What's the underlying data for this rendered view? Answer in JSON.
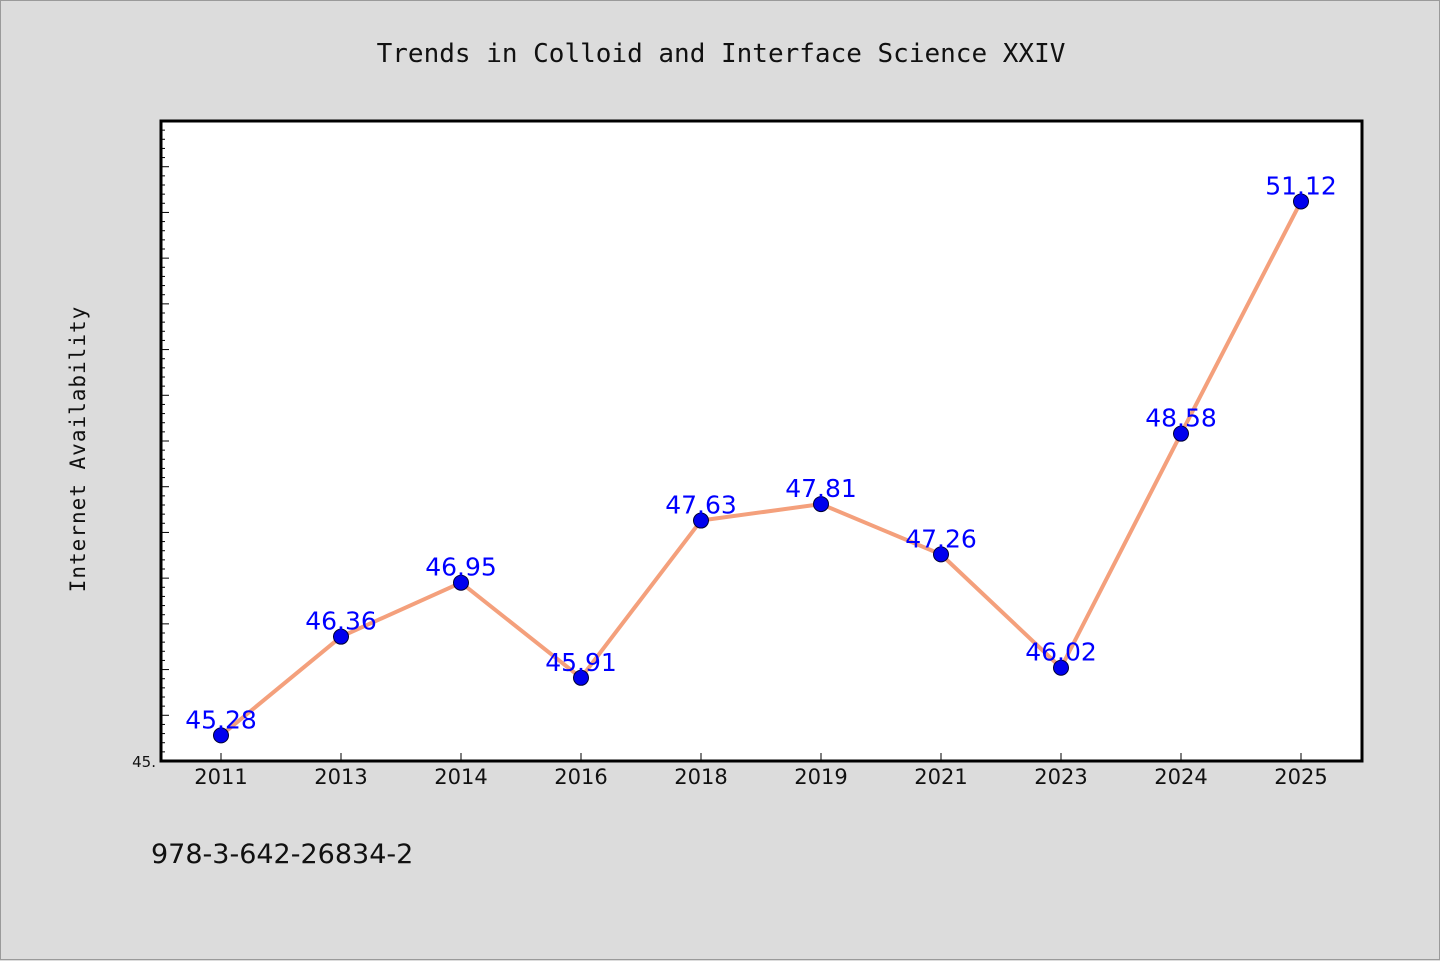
{
  "chart_data": {
    "type": "line",
    "title": "Trends in Colloid and Interface Science XXIV",
    "xlabel": "",
    "ylabel": "Internet Availability",
    "categories": [
      "2011",
      "2013",
      "2014",
      "2016",
      "2018",
      "2019",
      "2021",
      "2023",
      "2024",
      "2025"
    ],
    "series": [
      {
        "values": [
          45.28,
          46.36,
          46.95,
          45.91,
          47.63,
          47.81,
          47.26,
          46.02,
          48.58,
          51.12
        ],
        "value_labels": [
          "45.28",
          "46.36",
          "46.95",
          "45.91",
          "47.63",
          "47.81",
          "47.26",
          "46.02",
          "48.58",
          "51.12"
        ],
        "line_color": "#f4a07c",
        "marker_color": "#0000ee"
      }
    ],
    "ylim": [
      45.0,
      52.0
    ],
    "ytick_labels": [
      "45."
    ],
    "grid": false,
    "legend": "none"
  },
  "footer": {
    "isbn": "978-3-642-26834-2"
  },
  "colors": {
    "background": "#dcdcdc",
    "plot_background": "#ffffff",
    "label_color": "#0000ff"
  }
}
